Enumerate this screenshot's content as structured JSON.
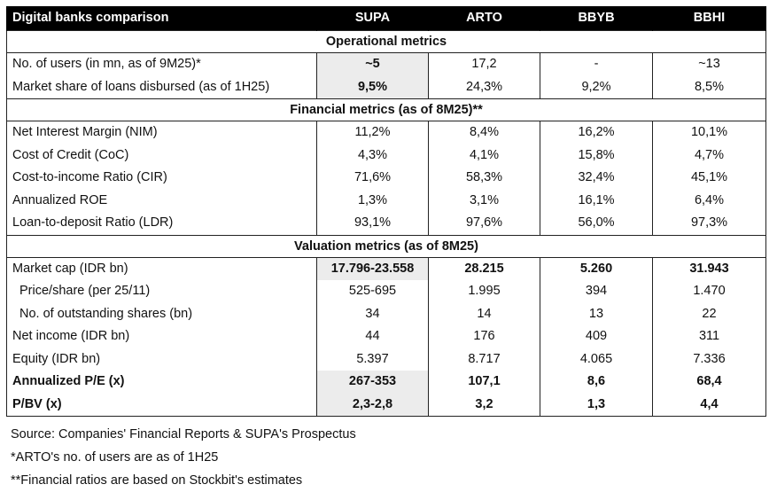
{
  "header": {
    "title": "Digital banks comparison",
    "columns": [
      "SUPA",
      "ARTO",
      "BBYB",
      "BBHI"
    ]
  },
  "sections": {
    "operational": "Operational metrics",
    "financial": "Financial metrics (as of 8M25)**",
    "valuation": "Valuation metrics (as of 8M25)"
  },
  "operational_rows": [
    {
      "label": "No. of users (in mn, as of 9M25)*",
      "values": [
        "~5",
        "17,2",
        "-",
        "~13"
      ]
    },
    {
      "label": "Market share of loans disbursed (as of 1H25)",
      "values": [
        "9,5%",
        "24,3%",
        "9,2%",
        "8,5%"
      ]
    }
  ],
  "financial_rows": [
    {
      "label": "Net Interest Margin (NIM)",
      "values": [
        "11,2%",
        "8,4%",
        "16,2%",
        "10,1%"
      ]
    },
    {
      "label": "Cost of Credit (CoC)",
      "values": [
        "4,3%",
        "4,1%",
        "15,8%",
        "4,7%"
      ]
    },
    {
      "label": "Cost-to-income Ratio (CIR)",
      "values": [
        "71,6%",
        "58,3%",
        "32,4%",
        "45,1%"
      ]
    },
    {
      "label": "Annualized ROE",
      "values": [
        "1,3%",
        "3,1%",
        "16,1%",
        "6,4%"
      ]
    },
    {
      "label": "Loan-to-deposit Ratio (LDR)",
      "values": [
        "93,1%",
        "97,6%",
        "56,0%",
        "97,3%"
      ]
    }
  ],
  "valuation_rows": [
    {
      "label": "Market cap (IDR bn)",
      "values": [
        "17.796-23.558",
        "28.215",
        "5.260",
        "31.943"
      ]
    },
    {
      "label": "Price/share (per 25/11)",
      "values": [
        "525-695",
        "1.995",
        "394",
        "1.470"
      ]
    },
    {
      "label": "No. of outstanding shares (bn)",
      "values": [
        "34",
        "14",
        "13",
        "22"
      ]
    },
    {
      "label": "Net income (IDR bn)",
      "values": [
        "44",
        "176",
        "409",
        "311"
      ]
    },
    {
      "label": "Equity (IDR bn)",
      "values": [
        "5.397",
        "8.717",
        "4.065",
        "7.336"
      ]
    },
    {
      "label": "Annualized P/E (x)",
      "values": [
        "267-353",
        "107,1",
        "8,6",
        "68,4"
      ]
    },
    {
      "label": "P/BV (x)",
      "values": [
        "2,3-2,8",
        "3,2",
        "1,3",
        "4,4"
      ]
    }
  ],
  "notes": [
    "Source: Companies' Financial Reports & SUPA's Prospectus",
    "*ARTO's no. of users are as of 1H25",
    "**Financial ratios are based on Stockbit's estimates"
  ]
}
